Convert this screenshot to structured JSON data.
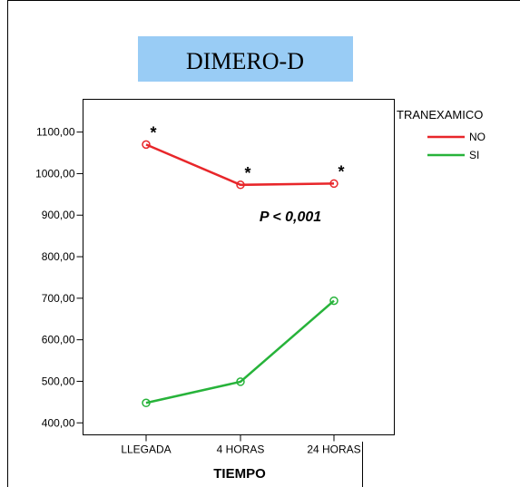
{
  "chart_data": {
    "type": "line",
    "title": "DIMERO-D",
    "xlabel": "TIEMPO",
    "ylabel": "",
    "categories": [
      "LLEGADA",
      "4 HORAS",
      "24 HORAS"
    ],
    "y_ticks": [
      "400,00",
      "500,00",
      "600,00",
      "700,00",
      "800,00",
      "900,00",
      "1000,00",
      "1100,00"
    ],
    "ylim": [
      370,
      1180
    ],
    "series": [
      {
        "name": "NO",
        "color": "#e8262a",
        "values": [
          1070,
          973,
          976
        ],
        "markers": [
          "*",
          "*",
          "*"
        ]
      },
      {
        "name": "SI",
        "color": "#27b33a",
        "values": [
          448,
          499,
          694
        ]
      }
    ],
    "legend": {
      "title": "TRANEXAMICO",
      "placement": "right"
    },
    "annotations": {
      "pvalue": "P < 0,001"
    },
    "title_bg": "#99ccf5",
    "grid": false
  }
}
